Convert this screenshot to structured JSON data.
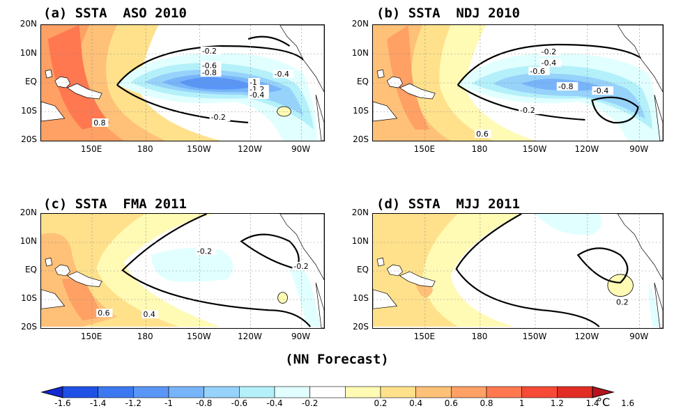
{
  "panels": [
    {
      "title": "(a) SSTA  ASO 2010",
      "contour_labels": [
        "-0.2",
        "-0.6",
        "-0.8",
        "-1",
        "-0.4",
        "-1.2",
        "-0.4",
        "-0.2",
        "0.8"
      ]
    },
    {
      "title": "(b) SSTA  NDJ 2010",
      "contour_labels": [
        "-0.2",
        "-0.4",
        "-0.6",
        "-0.8",
        "-0.4",
        "-0.2",
        "0.6"
      ]
    },
    {
      "title": "(c) SSTA  FMA 2011",
      "contour_labels": [
        "-0.2",
        "-0.2",
        "0.6",
        "0.4"
      ]
    },
    {
      "title": "(d) SSTA  MJJ 2011",
      "contour_labels": [
        "0.2"
      ]
    }
  ],
  "y_ticks": [
    "20N",
    "10N",
    "EQ",
    "10S",
    "20S"
  ],
  "x_ticks": [
    "150E",
    "180",
    "150W",
    "120W",
    "90W"
  ],
  "footer": "(NN Forecast)",
  "colorbar": {
    "labels": [
      "-1.6",
      "-1.4",
      "-1.2",
      "-1",
      "-0.8",
      "-0.6",
      "-0.4",
      "-0.2",
      "0.2",
      "0.4",
      "0.6",
      "0.8",
      "1",
      "1.2",
      "1.4",
      "1.6"
    ],
    "unit": "°C",
    "colors": [
      "#1428d2",
      "#2050e6",
      "#3c78f0",
      "#5a96f5",
      "#78b4fa",
      "#96d2fa",
      "#b4f0fa",
      "#e1ffff",
      "#ffffff",
      "#fffab4",
      "#ffe18c",
      "#ffc078",
      "#ffa064",
      "#ff7850",
      "#f54b37",
      "#e12d23",
      "#b4141e"
    ]
  },
  "colors": {
    "land": "#ffffff",
    "coast": "#000000",
    "zero_contour": "#000000"
  }
}
